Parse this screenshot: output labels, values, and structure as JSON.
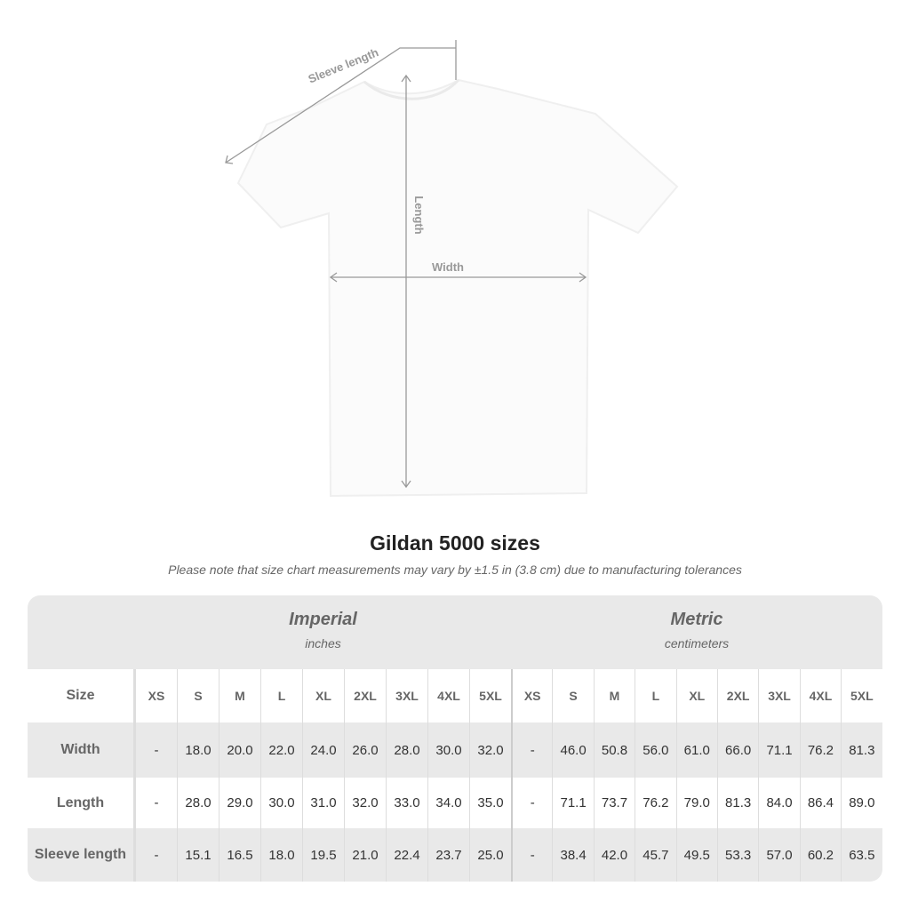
{
  "diagram": {
    "sleeve_label": "Sleeve length",
    "length_label": "Length",
    "width_label": "Width"
  },
  "title": "Gildan 5000 sizes",
  "note": "Please note that size chart measurements may vary by ±1.5 in (3.8 cm) due to manufacturing tolerances",
  "table": {
    "imperial": {
      "label": "Imperial",
      "unit": "inches"
    },
    "metric": {
      "label": "Metric",
      "unit": "centimeters"
    },
    "size_header": "Size",
    "sizes": [
      "XS",
      "S",
      "M",
      "L",
      "XL",
      "2XL",
      "3XL",
      "4XL",
      "5XL"
    ],
    "rows": [
      {
        "label": "Width",
        "imperial": [
          "-",
          "18.0",
          "20.0",
          "22.0",
          "24.0",
          "26.0",
          "28.0",
          "30.0",
          "32.0"
        ],
        "metric": [
          "-",
          "46.0",
          "50.8",
          "56.0",
          "61.0",
          "66.0",
          "71.1",
          "76.2",
          "81.3"
        ]
      },
      {
        "label": "Length",
        "imperial": [
          "-",
          "28.0",
          "29.0",
          "30.0",
          "31.0",
          "32.0",
          "33.0",
          "34.0",
          "35.0"
        ],
        "metric": [
          "-",
          "71.1",
          "73.7",
          "76.2",
          "79.0",
          "81.3",
          "84.0",
          "86.4",
          "89.0"
        ]
      },
      {
        "label": "Sleeve length",
        "imperial": [
          "-",
          "15.1",
          "16.5",
          "18.0",
          "19.5",
          "21.0",
          "22.4",
          "23.7",
          "25.0"
        ],
        "metric": [
          "-",
          "38.4",
          "42.0",
          "45.7",
          "49.5",
          "53.3",
          "57.0",
          "60.2",
          "63.5"
        ]
      }
    ]
  },
  "colors": {
    "row_gray": "#e9e9e9",
    "measure_line": "#999999"
  }
}
